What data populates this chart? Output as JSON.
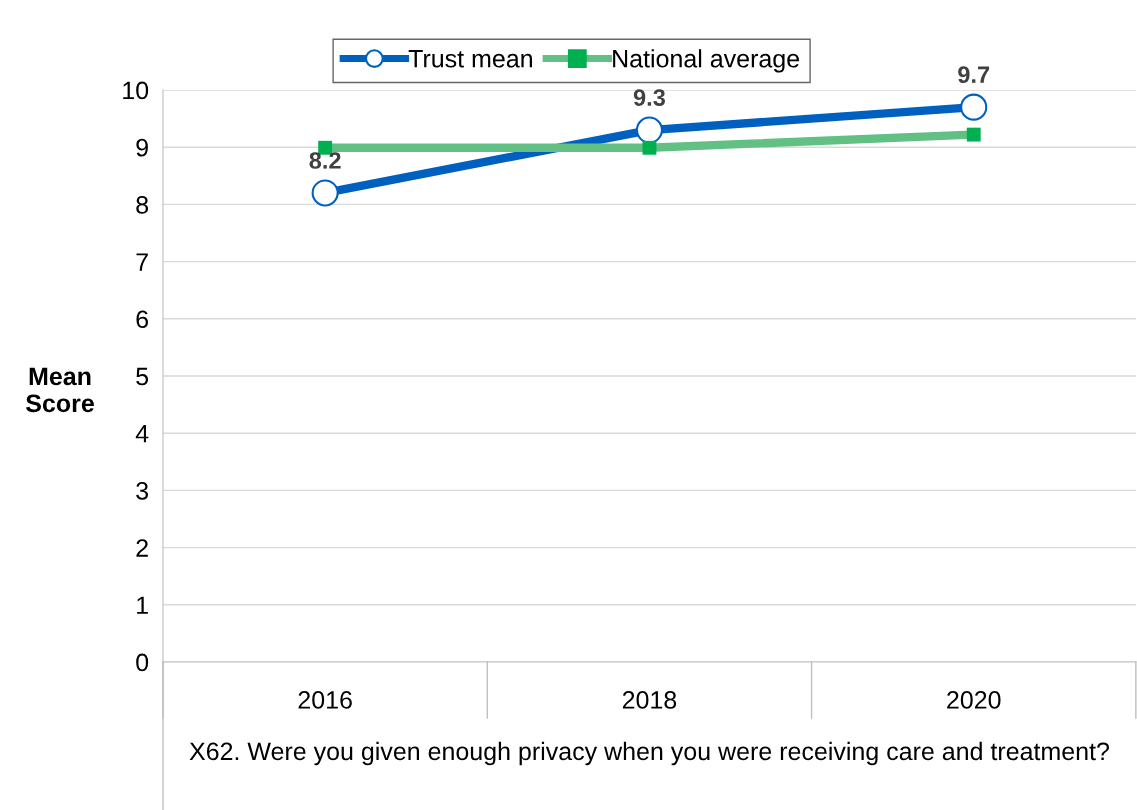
{
  "chart_data": {
    "type": "line",
    "categories": [
      "2016",
      "2018",
      "2020"
    ],
    "xlabel": "X62. Were you given enough privacy when you were receiving care and treatment?",
    "ylabel": "Mean\nScore",
    "ylim": [
      0,
      10
    ],
    "yticks": [
      0,
      1,
      2,
      3,
      4,
      5,
      6,
      7,
      8,
      9,
      10
    ],
    "grid": "y",
    "legend": "top",
    "series": [
      {
        "name": "Trust mean",
        "color": "#0060c0",
        "marker": "circle",
        "values": [
          8.2,
          9.3,
          9.7
        ],
        "value_labels": [
          "8.2",
          "9.3",
          "9.7"
        ]
      },
      {
        "name": "National average",
        "color": "#62c084",
        "marker": "square",
        "values": [
          8.99,
          8.99,
          9.22
        ]
      }
    ]
  }
}
